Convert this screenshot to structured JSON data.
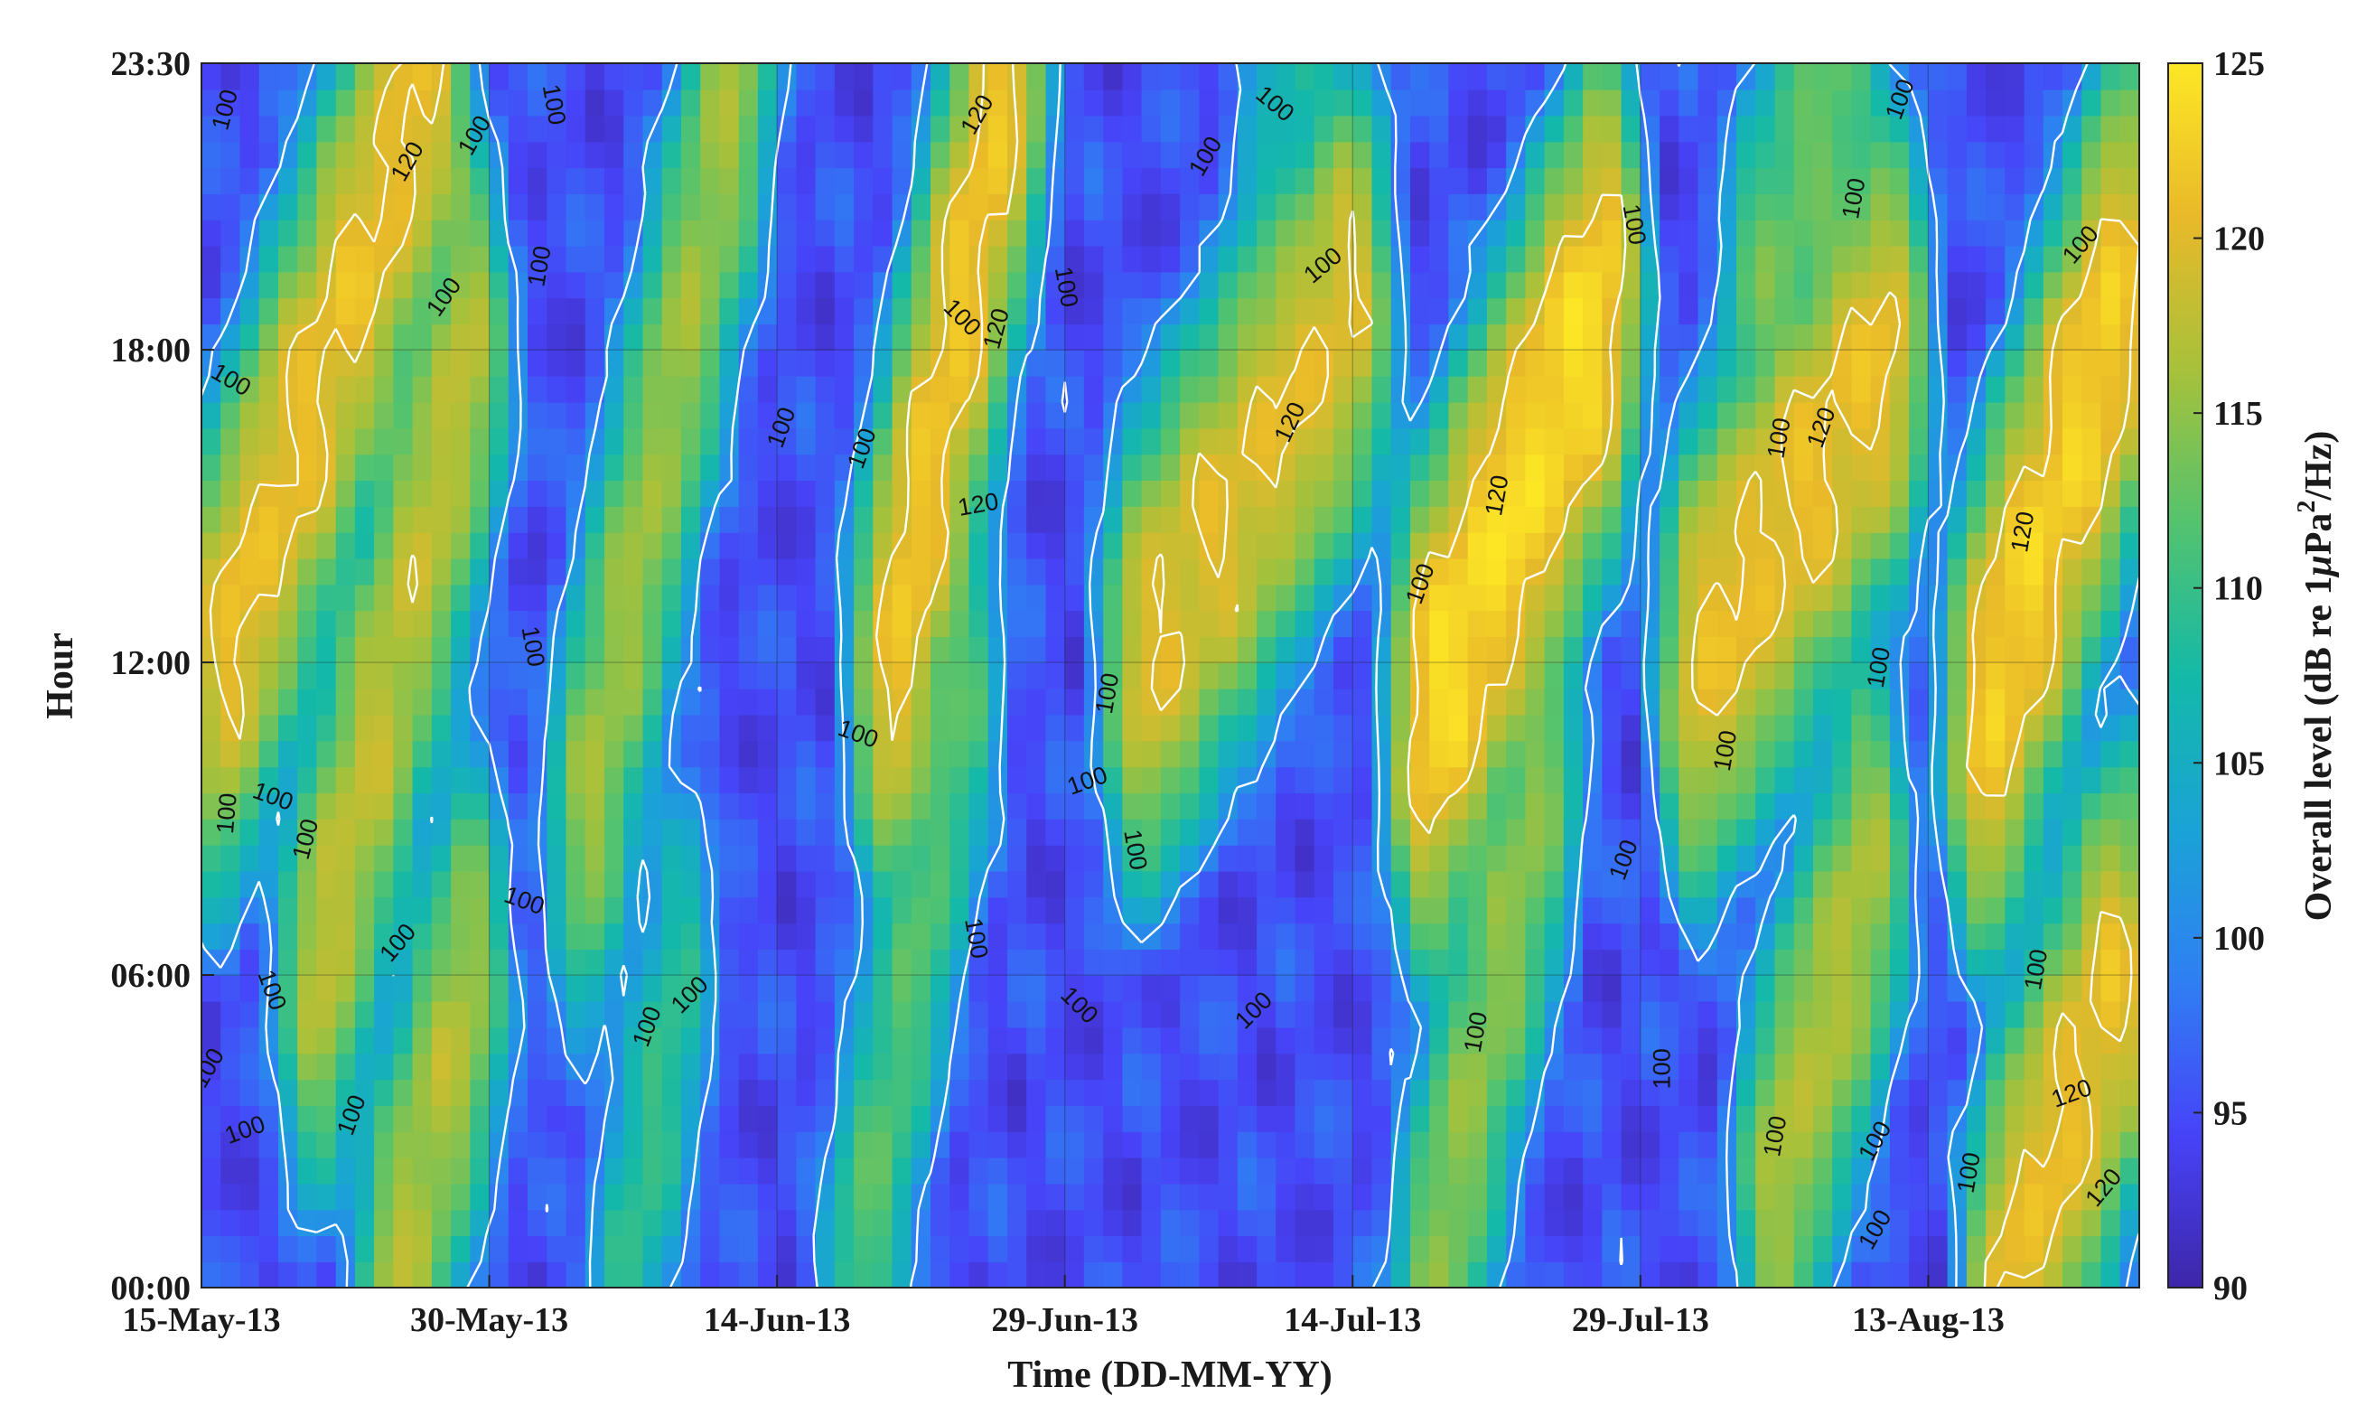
{
  "chart_data": {
    "type": "heatmap",
    "title": "",
    "xlabel": "Time (DD-MM-YY)",
    "ylabel": "Hour",
    "colorbar_label_main": "Overall level (dB re 1",
    "colorbar_label_mu": "μ",
    "colorbar_label_unit": "Pa",
    "colorbar_label_sup": "2",
    "colorbar_label_tail": "/Hz)",
    "x_start_date": "15-May-13",
    "x_range_days": [
      0,
      101
    ],
    "x_ticks": [
      {
        "label": "15-May-13",
        "day": 0
      },
      {
        "label": "30-May-13",
        "day": 15
      },
      {
        "label": "14-Jun-13",
        "day": 30
      },
      {
        "label": "29-Jun-13",
        "day": 45
      },
      {
        "label": "14-Jul-13",
        "day": 60
      },
      {
        "label": "29-Jul-13",
        "day": 75
      },
      {
        "label": "13-Aug-13",
        "day": 90
      }
    ],
    "y_range_hours": [
      0,
      23.5
    ],
    "y_ticks": [
      {
        "label": "00:00",
        "hour": 0
      },
      {
        "label": "06:00",
        "hour": 6
      },
      {
        "label": "12:00",
        "hour": 12
      },
      {
        "label": "18:00",
        "hour": 18
      },
      {
        "label": "23:30",
        "hour": 23.5
      }
    ],
    "colorbar_range": [
      90,
      125
    ],
    "colorbar_ticks": [
      "90",
      "95",
      "100",
      "105",
      "110",
      "115",
      "120",
      "125"
    ],
    "contour_levels": [
      100,
      120
    ],
    "colormap": [
      "#3e26a8",
      "#4743f8",
      "#2f7ff3",
      "#1aa3d6",
      "#14b9a8",
      "#54c36e",
      "#a7c13a",
      "#e9b929",
      "#fde725"
    ],
    "grid": true,
    "contour_labels": [
      {
        "text": "100",
        "day": 1.3,
        "hour": 22.6,
        "angle": -75
      },
      {
        "text": "120",
        "day": 10.8,
        "hour": 21.6,
        "angle": -60
      },
      {
        "text": "100",
        "day": 14.3,
        "hour": 22.1,
        "angle": -60
      },
      {
        "text": "100",
        "day": 18.3,
        "hour": 22.7,
        "angle": 80
      },
      {
        "text": "100",
        "day": 17.7,
        "hour": 19.6,
        "angle": -80
      },
      {
        "text": "100",
        "day": 12.7,
        "hour": 19.0,
        "angle": -55
      },
      {
        "text": "100",
        "day": 1.5,
        "hour": 17.4,
        "angle": 30
      },
      {
        "text": "120",
        "day": 40.5,
        "hour": 22.5,
        "angle": -60
      },
      {
        "text": "100",
        "day": 45.0,
        "hour": 19.2,
        "angle": 80
      },
      {
        "text": "100",
        "day": 39.6,
        "hour": 18.6,
        "angle": 45
      },
      {
        "text": "120",
        "day": 41.5,
        "hour": 18.4,
        "angle": -75
      },
      {
        "text": "100",
        "day": 30.3,
        "hour": 16.5,
        "angle": -70
      },
      {
        "text": "100",
        "day": 34.5,
        "hour": 16.1,
        "angle": -70
      },
      {
        "text": "120",
        "day": 40.5,
        "hour": 15.0,
        "angle": -10
      },
      {
        "text": "100",
        "day": 52.4,
        "hour": 21.7,
        "angle": -60
      },
      {
        "text": "100",
        "day": 55.9,
        "hour": 22.7,
        "angle": 40
      },
      {
        "text": "100",
        "day": 58.5,
        "hour": 19.6,
        "angle": -40
      },
      {
        "text": "120",
        "day": 56.8,
        "hour": 16.6,
        "angle": -65
      },
      {
        "text": "120",
        "day": 67.6,
        "hour": 15.2,
        "angle": -80
      },
      {
        "text": "100",
        "day": 63.6,
        "hour": 13.5,
        "angle": -70
      },
      {
        "text": "100",
        "day": 74.6,
        "hour": 20.4,
        "angle": 80
      },
      {
        "text": "100",
        "day": 86.2,
        "hour": 20.9,
        "angle": -80
      },
      {
        "text": "100",
        "day": 88.6,
        "hour": 22.8,
        "angle": -70
      },
      {
        "text": "100",
        "day": 98.0,
        "hour": 20.0,
        "angle": -50
      },
      {
        "text": "100",
        "day": 82.3,
        "hour": 16.3,
        "angle": -80
      },
      {
        "text": "120",
        "day": 84.5,
        "hour": 16.5,
        "angle": -70
      },
      {
        "text": "120",
        "day": 95.0,
        "hour": 14.5,
        "angle": -80
      },
      {
        "text": "100",
        "day": 17.2,
        "hour": 12.3,
        "angle": 80
      },
      {
        "text": "100",
        "day": 34.2,
        "hour": 10.6,
        "angle": 20
      },
      {
        "text": "100",
        "day": 47.3,
        "hour": 11.4,
        "angle": -80
      },
      {
        "text": "100",
        "day": 46.2,
        "hour": 9.7,
        "angle": -20
      },
      {
        "text": "100",
        "day": 48.6,
        "hour": 8.4,
        "angle": 80
      },
      {
        "text": "100",
        "day": 1.4,
        "hour": 9.1,
        "angle": -85
      },
      {
        "text": "100",
        "day": 3.7,
        "hour": 9.4,
        "angle": 20
      },
      {
        "text": "100",
        "day": 5.5,
        "hour": 8.6,
        "angle": -75
      },
      {
        "text": "100",
        "day": 16.8,
        "hour": 7.4,
        "angle": 20
      },
      {
        "text": "100",
        "day": 10.3,
        "hour": 6.6,
        "angle": -50
      },
      {
        "text": "100",
        "day": 3.6,
        "hour": 5.7,
        "angle": 70
      },
      {
        "text": "100",
        "day": 0.4,
        "hour": 4.2,
        "angle": -60
      },
      {
        "text": "100",
        "day": 2.3,
        "hour": 3.0,
        "angle": -20
      },
      {
        "text": "100",
        "day": 7.9,
        "hour": 3.3,
        "angle": -70
      },
      {
        "text": "100",
        "day": 23.3,
        "hour": 5.0,
        "angle": -70
      },
      {
        "text": "100",
        "day": 25.5,
        "hour": 5.6,
        "angle": -45
      },
      {
        "text": "100",
        "day": 40.3,
        "hour": 6.7,
        "angle": 80
      },
      {
        "text": "100",
        "day": 45.7,
        "hour": 5.4,
        "angle": 45
      },
      {
        "text": "100",
        "day": 54.9,
        "hour": 5.3,
        "angle": -45
      },
      {
        "text": "100",
        "day": 66.5,
        "hour": 4.9,
        "angle": -80
      },
      {
        "text": "100",
        "day": 74.2,
        "hour": 8.2,
        "angle": -70
      },
      {
        "text": "100",
        "day": 79.5,
        "hour": 10.3,
        "angle": -80
      },
      {
        "text": "100",
        "day": 87.5,
        "hour": 11.9,
        "angle": -80
      },
      {
        "text": "100",
        "day": 76.2,
        "hour": 4.2,
        "angle": -90
      },
      {
        "text": "100",
        "day": 82.1,
        "hour": 2.9,
        "angle": -80
      },
      {
        "text": "100",
        "day": 87.3,
        "hour": 2.8,
        "angle": -60
      },
      {
        "text": "100",
        "day": 87.3,
        "hour": 1.1,
        "angle": -60
      },
      {
        "text": "100",
        "day": 92.2,
        "hour": 2.2,
        "angle": -80
      },
      {
        "text": "100",
        "day": 95.7,
        "hour": 6.1,
        "angle": -80
      },
      {
        "text": "120",
        "day": 97.5,
        "hour": 3.7,
        "angle": -20
      },
      {
        "text": "120",
        "day": 99.2,
        "hour": 1.9,
        "angle": -50
      }
    ],
    "ridges": [
      {
        "d0": 1,
        "d1": 12,
        "h0": 12,
        "h1": 23.5,
        "peak": 121
      },
      {
        "d0": 6,
        "d1": 14,
        "h0": 6,
        "h1": 18,
        "peak": 118
      },
      {
        "d0": 10,
        "d1": 14,
        "h0": 0,
        "h1": 6,
        "peak": 117
      },
      {
        "d0": 20,
        "d1": 28,
        "h0": 9,
        "h1": 23.5,
        "peak": 116
      },
      {
        "d0": 22,
        "d1": 25,
        "h0": 0,
        "h1": 6,
        "peak": 110
      },
      {
        "d0": 36,
        "d1": 42,
        "h0": 12,
        "h1": 23.5,
        "peak": 122
      },
      {
        "d0": 34,
        "d1": 40,
        "h0": 0,
        "h1": 12,
        "peak": 112
      },
      {
        "d0": 49,
        "d1": 60,
        "h0": 12,
        "h1": 19,
        "peak": 120
      },
      {
        "d0": 55,
        "d1": 58,
        "h0": 20,
        "h1": 23.5,
        "peak": 108
      },
      {
        "d0": 64,
        "d1": 73,
        "h0": 11,
        "h1": 19,
        "peak": 124
      },
      {
        "d0": 64,
        "d1": 70,
        "h0": 0,
        "h1": 10,
        "peak": 115
      },
      {
        "d0": 78,
        "d1": 88,
        "h0": 12,
        "h1": 18,
        "peak": 121
      },
      {
        "d0": 81,
        "d1": 86,
        "h0": 19,
        "h1": 23.5,
        "peak": 113
      },
      {
        "d0": 82,
        "d1": 87,
        "h0": 2,
        "h1": 8,
        "peak": 117
      },
      {
        "d0": 93,
        "d1": 100,
        "h0": 11,
        "h1": 19,
        "peak": 123
      },
      {
        "d0": 94,
        "d1": 100,
        "h0": 0,
        "h1": 6,
        "peak": 121
      }
    ]
  }
}
